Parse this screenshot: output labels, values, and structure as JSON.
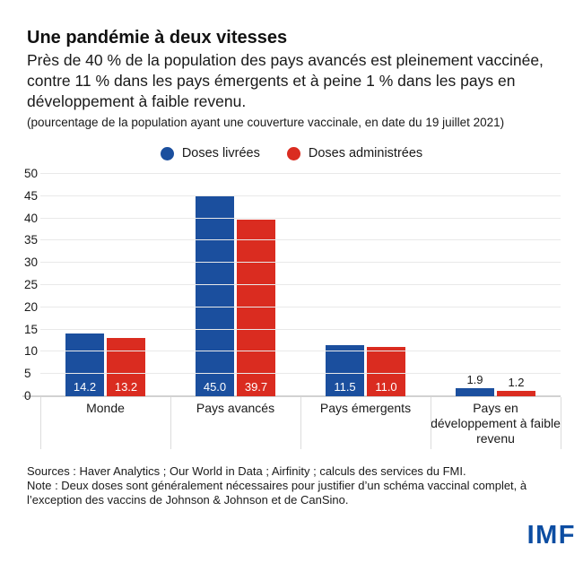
{
  "header": {
    "title": "Une pandémie à deux vitesses",
    "subtitle": "Près de 40 % de la population des pays avancés est pleinement vaccinée, contre 11 % dans les pays émergents et à peine 1 % dans les pays en développement à faible revenu.",
    "unit_note": "(pourcentage de la population ayant une couverture vaccinale, en date du 19 juillet 2021)"
  },
  "legend": [
    {
      "label": "Doses livrées",
      "color": "#1b4f9e"
    },
    {
      "label": "Doses administrées",
      "color": "#da2c20"
    }
  ],
  "chart_data": {
    "type": "bar",
    "categories": [
      "Monde",
      "Pays avancés",
      "Pays émergents",
      "Pays en développement à faible revenu"
    ],
    "series": [
      {
        "name": "Doses livrées",
        "color": "#1b4f9e",
        "values": [
          14.2,
          45.0,
          11.5,
          1.9
        ]
      },
      {
        "name": "Doses administrées",
        "color": "#da2c20",
        "values": [
          13.2,
          39.7,
          11.0,
          1.2
        ]
      }
    ],
    "title": "Une pandémie à deux vitesses",
    "xlabel": "",
    "ylabel": "",
    "ylim": [
      0,
      50
    ],
    "ytick_step": 5,
    "grid": true,
    "legend_position": "top",
    "value_labels": true
  },
  "footer": {
    "sources": "Sources : Haver Analytics ; Our World in Data ; Airfinity ; calculs des services du FMI.",
    "note": "Note : Deux doses sont généralement nécessaires pour justifier d’un schéma vaccinal complet, à l’exception des vaccins de Johnson & Johnson et de CanSino.",
    "logo": "IMF"
  },
  "colors": {
    "blue": "#1b4f9e",
    "red": "#da2c20",
    "logo_blue": "#0c4da2",
    "grid": "#e9e9e9",
    "axis": "#d2d2d2",
    "text": "#191919"
  }
}
